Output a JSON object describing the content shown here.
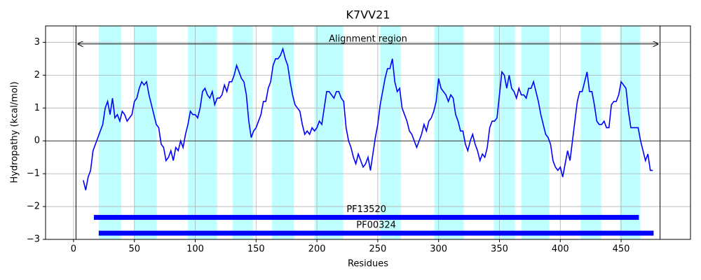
{
  "chart_data": {
    "type": "line",
    "title": "K7VV21",
    "x_label": "Residues",
    "y_label": "Hydropathy (kcal/mol)",
    "color": "#0000ff",
    "x": [
      8,
      10,
      12,
      14,
      16,
      18,
      20,
      22,
      24,
      26,
      28,
      30,
      32,
      34,
      36,
      38,
      40,
      42,
      44,
      46,
      48,
      50,
      52,
      54,
      56,
      58,
      60,
      62,
      64,
      66,
      68,
      70,
      72,
      74,
      76,
      78,
      80,
      82,
      84,
      86,
      88,
      90,
      92,
      94,
      96,
      98,
      100,
      102,
      104,
      106,
      108,
      110,
      112,
      114,
      116,
      118,
      120,
      122,
      124,
      126,
      128,
      130,
      132,
      134,
      136,
      138,
      140,
      142,
      144,
      146,
      148,
      150,
      152,
      154,
      156,
      158,
      160,
      162,
      164,
      166,
      168,
      170,
      172,
      174,
      176,
      178,
      180,
      182,
      184,
      186,
      188,
      190,
      192,
      194,
      196,
      198,
      200,
      202,
      204,
      206,
      208,
      210,
      212,
      214,
      216,
      218,
      220,
      222,
      224,
      226,
      228,
      230,
      232,
      234,
      236,
      238,
      240,
      242,
      244,
      246,
      248,
      250,
      252,
      254,
      256,
      258,
      260,
      262,
      264,
      266,
      268,
      270,
      272,
      274,
      276,
      278,
      280,
      282,
      284,
      286,
      288,
      290,
      292,
      294,
      296,
      298,
      300,
      302,
      304,
      306,
      308,
      310,
      312,
      314,
      316,
      318,
      320,
      322,
      324,
      326,
      328,
      330,
      332,
      334,
      336,
      338,
      340,
      342,
      344,
      346,
      348,
      350,
      352,
      354,
      356,
      358,
      360,
      362,
      364,
      366,
      368,
      370,
      372,
      374,
      376,
      378,
      380,
      382,
      384,
      386,
      388,
      390,
      392,
      394,
      396,
      398,
      400,
      402,
      404,
      406,
      408,
      410,
      412,
      414,
      416,
      418,
      420,
      422,
      424,
      426,
      428,
      430,
      432,
      434,
      436,
      438,
      440,
      442,
      444,
      446,
      448,
      450,
      452,
      454,
      456,
      458,
      460,
      462,
      464,
      466,
      468,
      470,
      472,
      474,
      476
    ],
    "values": [
      -1.2,
      -1.5,
      -1.1,
      -0.9,
      -0.3,
      -0.1,
      0.1,
      0.3,
      0.5,
      1.0,
      1.2,
      0.8,
      1.3,
      0.7,
      0.8,
      0.6,
      0.9,
      0.8,
      0.6,
      0.7,
      0.8,
      1.2,
      1.3,
      1.6,
      1.8,
      1.7,
      1.8,
      1.4,
      1.1,
      0.8,
      0.5,
      0.4,
      -0.1,
      -0.2,
      -0.6,
      -0.5,
      -0.3,
      -0.6,
      -0.2,
      -0.3,
      0.0,
      -0.2,
      0.2,
      0.5,
      0.9,
      0.8,
      0.8,
      0.7,
      1.0,
      1.5,
      1.6,
      1.4,
      1.3,
      1.5,
      1.1,
      1.3,
      1.3,
      1.4,
      1.7,
      1.5,
      1.8,
      1.8,
      2.0,
      2.3,
      2.1,
      1.9,
      1.8,
      1.4,
      0.6,
      0.1,
      0.3,
      0.4,
      0.6,
      0.8,
      1.2,
      1.2,
      1.6,
      1.8,
      2.3,
      2.5,
      2.5,
      2.6,
      2.8,
      2.5,
      2.3,
      1.8,
      1.4,
      1.1,
      1.0,
      0.9,
      0.5,
      0.2,
      0.3,
      0.2,
      0.4,
      0.3,
      0.4,
      0.6,
      0.5,
      1.0,
      1.5,
      1.5,
      1.4,
      1.3,
      1.5,
      1.5,
      1.3,
      1.2,
      0.4,
      0.0,
      -0.2,
      -0.5,
      -0.7,
      -0.4,
      -0.6,
      -0.8,
      -0.7,
      -0.5,
      -0.9,
      -0.4,
      0.1,
      0.5,
      1.1,
      1.5,
      1.9,
      2.2,
      2.2,
      2.5,
      1.8,
      1.5,
      1.6,
      1.0,
      0.8,
      0.6,
      0.3,
      0.2,
      0.0,
      -0.2,
      0.0,
      0.2,
      0.5,
      0.3,
      0.6,
      0.7,
      0.9,
      1.2,
      1.9,
      1.6,
      1.5,
      1.4,
      1.2,
      1.4,
      1.3,
      0.8,
      0.6,
      0.3,
      0.3,
      -0.1,
      -0.3,
      0.0,
      0.2,
      -0.1,
      -0.3,
      -0.6,
      -0.4,
      -0.5,
      -0.2,
      0.4,
      0.6,
      0.6,
      0.7,
      1.4,
      2.1,
      2.0,
      1.6,
      2.0,
      1.6,
      1.5,
      1.3,
      1.6,
      1.4,
      1.4,
      1.3,
      1.6,
      1.6,
      1.8,
      1.5,
      1.2,
      0.8,
      0.5,
      0.2,
      0.1,
      -0.1,
      -0.6,
      -0.8,
      -0.9,
      -0.8,
      -1.1,
      -0.7,
      -0.3,
      -0.6,
      0.0,
      0.6,
      1.2,
      1.5,
      1.5,
      1.8,
      2.1,
      1.5,
      1.5,
      1.1,
      0.6,
      0.5,
      0.5,
      0.6,
      0.4,
      0.4,
      1.1,
      1.2,
      1.2,
      1.4,
      1.8,
      1.7,
      1.6,
      0.9,
      0.4,
      0.4,
      0.4,
      0.4,
      0.0,
      -0.3,
      -0.6,
      -0.4,
      -0.9,
      -0.9
    ],
    "xlim": [
      -23,
      507
    ],
    "ylim": [
      -3,
      3.5
    ],
    "xticks": [
      0,
      50,
      100,
      150,
      200,
      250,
      300,
      350,
      400,
      450
    ],
    "yticks": [
      {
        "value": -3,
        "label": "−3"
      },
      {
        "value": -2,
        "label": "−2"
      },
      {
        "value": -1,
        "label": "−1"
      },
      0,
      1,
      2,
      3
    ],
    "grid": true,
    "hline": 0,
    "region_color": "#c0ffff",
    "regions": [
      {
        "start": 20.7,
        "end": 39.1
      },
      {
        "start": 50,
        "end": 68.4
      },
      {
        "start": 94,
        "end": 118
      },
      {
        "start": 130.7,
        "end": 147.4
      },
      {
        "start": 163,
        "end": 181
      },
      {
        "start": 198,
        "end": 221.6
      },
      {
        "start": 252,
        "end": 269
      },
      {
        "start": 296.5,
        "end": 320.7
      },
      {
        "start": 345.4,
        "end": 362.7
      },
      {
        "start": 368,
        "end": 391
      },
      {
        "start": 416.8,
        "end": 433.5
      },
      {
        "start": 449,
        "end": 465.7
      }
    ],
    "alignment": {
      "label": "Alignment region",
      "start": 2,
      "end": 482,
      "y": 2.95
    },
    "domains": [
      {
        "name": "PF13520",
        "start": 16.7,
        "end": 464.6,
        "y": -2.33,
        "color": "#0000ff"
      },
      {
        "name": "PF00324",
        "start": 20.7,
        "end": 476.7,
        "y": -2.81,
        "color": "#0000ff"
      }
    ]
  }
}
